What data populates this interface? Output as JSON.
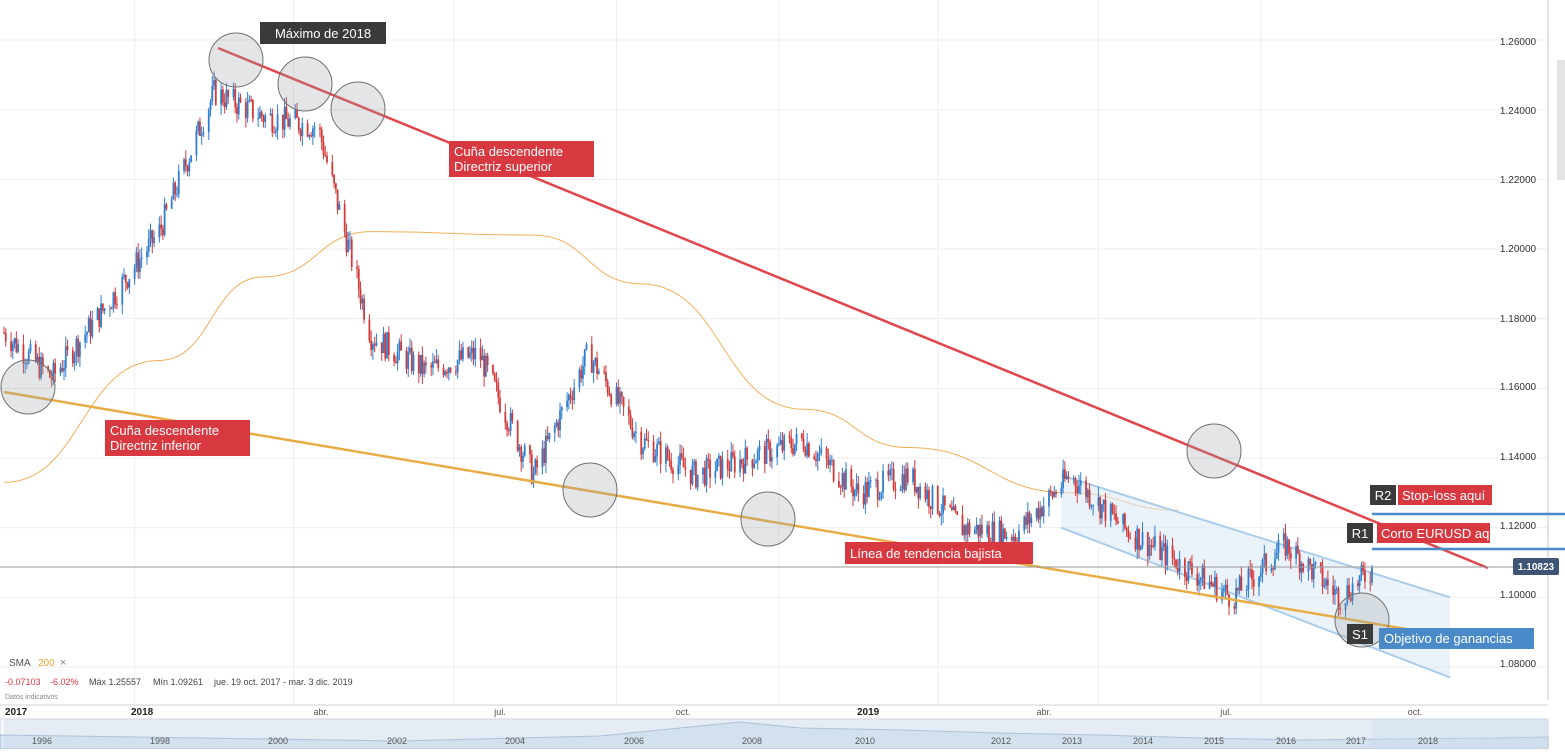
{
  "chart_data": {
    "type": "line",
    "title": "",
    "xlabel": "",
    "ylabel": "",
    "ylim": [
      1.072,
      1.266
    ],
    "y_ticks": [
      "1.26000",
      "1.24000",
      "1.22000",
      "1.20000",
      "1.18000",
      "1.16000",
      "1.14000",
      "1.12000",
      "1.10000",
      "1.08000"
    ],
    "x_ticks": [
      "abr.",
      "jul.",
      "oct.",
      "abr.",
      "jul.",
      "oct."
    ],
    "year_ticks": [
      "2017",
      "2018",
      "2019"
    ],
    "grid": true,
    "current_price": "1.10823",
    "series": [
      {
        "type": "candlestick",
        "x": [
          "2017-10-19",
          "2017-11-15",
          "2017-12-15",
          "2018-01-15",
          "2018-02-15",
          "2018-03-15",
          "2018-04-15",
          "2018-05-15",
          "2018-06-15",
          "2018-07-15",
          "2018-08-15",
          "2018-09-15",
          "2018-10-15",
          "2018-11-15",
          "2018-12-15",
          "2019-01-15",
          "2019-02-15",
          "2019-03-15",
          "2019-04-15",
          "2019-05-15",
          "2019-06-15",
          "2019-07-15",
          "2019-08-15",
          "2019-09-15",
          "2019-10-15",
          "2019-11-15",
          "2019-12-03"
        ],
        "values": [
          1.176,
          1.163,
          1.183,
          1.205,
          1.245,
          1.238,
          1.235,
          1.175,
          1.165,
          1.17,
          1.135,
          1.17,
          1.145,
          1.135,
          1.14,
          1.145,
          1.13,
          1.135,
          1.12,
          1.118,
          1.135,
          1.12,
          1.11,
          1.1,
          1.115,
          1.1,
          1.108
        ]
      },
      {
        "name": "SMA 200",
        "type": "line",
        "x": [
          "2017-10-19",
          "2018-01-15",
          "2018-03-15",
          "2018-05-15",
          "2018-08-15",
          "2018-10-15",
          "2019-01-15",
          "2019-03-15",
          "2019-06-15",
          "2019-08-15"
        ],
        "values": [
          1.133,
          1.168,
          1.192,
          1.205,
          1.204,
          1.19,
          1.154,
          1.143,
          1.13,
          1.125
        ]
      }
    ],
    "indicator": {
      "name": "SMA",
      "period": "200",
      "change": "-0.07103",
      "change_pct": "-6.02%",
      "max_label": "Máx 1.25557",
      "min_label": "Mín 1.09261",
      "range": "jue. 19 oct. 2017 - mar. 3 dic. 2019",
      "note": "Datos indicativos"
    },
    "annotations": [
      {
        "text": "Máximo de 2018"
      },
      {
        "text": "Cuña descendente",
        "text2": "Directriz superior"
      },
      {
        "text": "Cuña descendente",
        "text2": "Directriz inferior"
      },
      {
        "text": "Línea de tendencia bajista"
      },
      {
        "text": "Stop-loss aquí",
        "tag": "R2"
      },
      {
        "text": "Corto EURUSD aquí",
        "tag": "R1"
      },
      {
        "text": "Objetivo de ganancias",
        "tag": "S1"
      }
    ],
    "navigator": {
      "years": [
        "1996",
        "1998",
        "2000",
        "2002",
        "2004",
        "2006",
        "2008",
        "2010",
        "2012",
        "2013",
        "2014",
        "2015",
        "2016",
        "2017",
        "2018"
      ]
    },
    "colors": {
      "bull": "#2f7fd0",
      "bear": "#d33a3a",
      "upper_line": "#e0474c",
      "lower_line": "#e8ac45",
      "sma": "#f0b15a",
      "label_red": "#d8383f",
      "label_dark": "#3a3a3a",
      "label_blue": "#4a8ac9",
      "channel": "#a9cdea",
      "price_tag": "#3f5576"
    }
  }
}
